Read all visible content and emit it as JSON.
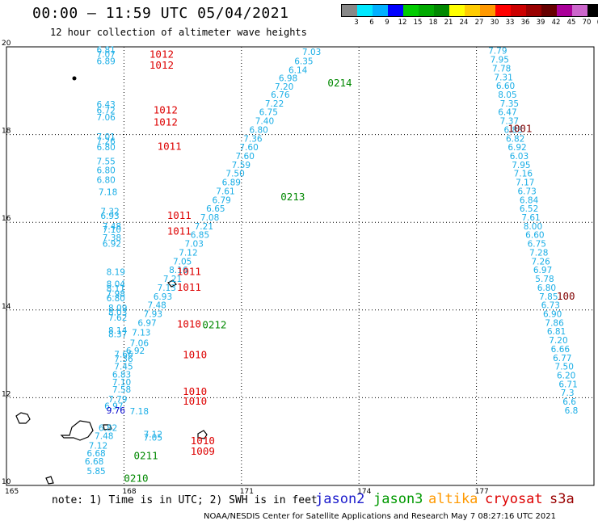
{
  "header": {
    "title": "00:00 – 11:59 UTC 05/04/2021",
    "subtitle": "12 hour collection of altimeter wave heights"
  },
  "colorscale": {
    "colors": [
      "#888888",
      "#00e8ff",
      "#00b0ff",
      "#0000ff",
      "#00cc00",
      "#00aa00",
      "#008800",
      "#ffff00",
      "#ffcc00",
      "#ff9900",
      "#ff0000",
      "#cc0000",
      "#990000",
      "#660000",
      "#aa0099",
      "#cc66cc",
      "#000000"
    ],
    "labels": [
      "3",
      "6",
      "9",
      "12",
      "15",
      "18",
      "21",
      "24",
      "27",
      "30",
      "33",
      "36",
      "39",
      "42",
      "45",
      "70",
      "(ft)"
    ]
  },
  "map": {
    "lon_range": [
      165,
      180
    ],
    "lat_range": [
      10,
      20
    ],
    "lon_ticks": [
      "165",
      "168",
      "171",
      "174",
      "177"
    ],
    "lat_ticks": [
      "20",
      "18",
      "16",
      "14",
      "12",
      "10"
    ],
    "swh_color": "#1aaee6",
    "island_markers": [
      "island-marker"
    ],
    "observations": [
      {
        "lon": 167.3,
        "lat": 19.86,
        "v": "6.81"
      },
      {
        "lon": 167.3,
        "lat": 19.76,
        "v": "7.07"
      },
      {
        "lon": 167.3,
        "lat": 19.6,
        "v": "6.89"
      },
      {
        "lon": 167.3,
        "lat": 18.62,
        "v": "6.43"
      },
      {
        "lon": 167.3,
        "lat": 18.48,
        "v": "6.72"
      },
      {
        "lon": 167.3,
        "lat": 18.32,
        "v": "7.06"
      },
      {
        "lon": 167.3,
        "lat": 17.88,
        "v": "7.01"
      },
      {
        "lon": 167.3,
        "lat": 17.78,
        "v": "7.26"
      },
      {
        "lon": 167.3,
        "lat": 17.64,
        "v": "6.80"
      },
      {
        "lon": 167.3,
        "lat": 17.32,
        "v": "7.55"
      },
      {
        "lon": 167.3,
        "lat": 17.12,
        "v": "6.80"
      },
      {
        "lon": 167.3,
        "lat": 16.9,
        "v": "6.80"
      },
      {
        "lon": 167.35,
        "lat": 16.62,
        "v": "7.18"
      },
      {
        "lon": 167.4,
        "lat": 16.18,
        "v": "7.32"
      },
      {
        "lon": 167.4,
        "lat": 16.08,
        "v": "6.93"
      },
      {
        "lon": 167.45,
        "lat": 15.84,
        "v": "7.48"
      },
      {
        "lon": 167.45,
        "lat": 15.76,
        "v": "7.10"
      },
      {
        "lon": 167.45,
        "lat": 15.58,
        "v": "7.38"
      },
      {
        "lon": 167.45,
        "lat": 15.44,
        "v": "6.92"
      },
      {
        "lon": 167.55,
        "lat": 14.8,
        "v": "8.19"
      },
      {
        "lon": 167.55,
        "lat": 14.52,
        "v": "8.04"
      },
      {
        "lon": 167.55,
        "lat": 14.42,
        "v": "8.11"
      },
      {
        "lon": 167.55,
        "lat": 14.3,
        "v": "7.98"
      },
      {
        "lon": 167.55,
        "lat": 14.2,
        "v": "6.80"
      },
      {
        "lon": 167.6,
        "lat": 13.98,
        "v": "8.09"
      },
      {
        "lon": 167.6,
        "lat": 13.88,
        "v": "8.03"
      },
      {
        "lon": 167.6,
        "lat": 13.76,
        "v": "7.62"
      },
      {
        "lon": 167.6,
        "lat": 13.46,
        "v": "8.14"
      },
      {
        "lon": 167.6,
        "lat": 13.38,
        "v": "8.37"
      },
      {
        "lon": 168.2,
        "lat": 13.42,
        "v": "7.13"
      },
      {
        "lon": 168.15,
        "lat": 13.18,
        "v": "7.06"
      },
      {
        "lon": 168.05,
        "lat": 13.0,
        "v": "6.92"
      },
      {
        "lon": 167.75,
        "lat": 12.92,
        "v": "7.66"
      },
      {
        "lon": 167.75,
        "lat": 12.82,
        "v": "7.36"
      },
      {
        "lon": 167.75,
        "lat": 12.64,
        "v": "7.45"
      },
      {
        "lon": 167.7,
        "lat": 12.46,
        "v": "6.83"
      },
      {
        "lon": 167.7,
        "lat": 12.28,
        "v": "7.10"
      },
      {
        "lon": 167.7,
        "lat": 12.12,
        "v": "7.58"
      },
      {
        "lon": 167.6,
        "lat": 11.9,
        "v": "7.79"
      },
      {
        "lon": 167.5,
        "lat": 11.74,
        "v": "6.97"
      },
      {
        "lon": 167.55,
        "lat": 11.64,
        "v": "9.76",
        "c": "#0000cc"
      },
      {
        "lon": 168.15,
        "lat": 11.62,
        "v": "7.18"
      },
      {
        "lon": 167.35,
        "lat": 11.24,
        "v": "6.82"
      },
      {
        "lon": 167.25,
        "lat": 11.06,
        "v": "7.48"
      },
      {
        "lon": 167.1,
        "lat": 10.84,
        "v": "7.12"
      },
      {
        "lon": 167.05,
        "lat": 10.66,
        "v": "6.68"
      },
      {
        "lon": 167.0,
        "lat": 10.48,
        "v": "6.68"
      },
      {
        "lon": 167.05,
        "lat": 10.26,
        "v": "5.85"
      },
      {
        "lon": 168.5,
        "lat": 11.1,
        "v": "7.12"
      },
      {
        "lon": 168.5,
        "lat": 11.02,
        "v": "7.05"
      },
      {
        "lon": 172.55,
        "lat": 19.82,
        "v": "7.03"
      },
      {
        "lon": 172.35,
        "lat": 19.6,
        "v": "6.35"
      },
      {
        "lon": 172.2,
        "lat": 19.4,
        "v": "6.14"
      },
      {
        "lon": 171.95,
        "lat": 19.22,
        "v": "6.98"
      },
      {
        "lon": 171.85,
        "lat": 19.02,
        "v": "7.20"
      },
      {
        "lon": 171.75,
        "lat": 18.84,
        "v": "6.76"
      },
      {
        "lon": 171.6,
        "lat": 18.64,
        "v": "7.22"
      },
      {
        "lon": 171.45,
        "lat": 18.44,
        "v": "6.75"
      },
      {
        "lon": 171.35,
        "lat": 18.24,
        "v": "7.40"
      },
      {
        "lon": 171.2,
        "lat": 18.04,
        "v": "6.80"
      },
      {
        "lon": 171.05,
        "lat": 17.84,
        "v": "7.36"
      },
      {
        "lon": 170.95,
        "lat": 17.64,
        "v": "7.60"
      },
      {
        "lon": 170.85,
        "lat": 17.44,
        "v": "7.60"
      },
      {
        "lon": 170.75,
        "lat": 17.24,
        "v": "7.59"
      },
      {
        "lon": 170.6,
        "lat": 17.04,
        "v": "7.50"
      },
      {
        "lon": 170.5,
        "lat": 16.84,
        "v": "6.89"
      },
      {
        "lon": 170.35,
        "lat": 16.64,
        "v": "7.61"
      },
      {
        "lon": 170.25,
        "lat": 16.44,
        "v": "6.79"
      },
      {
        "lon": 170.1,
        "lat": 16.24,
        "v": "6.65"
      },
      {
        "lon": 169.95,
        "lat": 16.04,
        "v": "7.08"
      },
      {
        "lon": 169.8,
        "lat": 15.84,
        "v": "7.21"
      },
      {
        "lon": 169.7,
        "lat": 15.64,
        "v": "6.85"
      },
      {
        "lon": 169.55,
        "lat": 15.44,
        "v": "7.03"
      },
      {
        "lon": 169.4,
        "lat": 15.24,
        "v": "7.12"
      },
      {
        "lon": 169.25,
        "lat": 15.04,
        "v": "7.05"
      },
      {
        "lon": 169.15,
        "lat": 14.84,
        "v": "8.16"
      },
      {
        "lon": 169.0,
        "lat": 14.64,
        "v": "7.21"
      },
      {
        "lon": 168.85,
        "lat": 14.44,
        "v": "7.13"
      },
      {
        "lon": 168.75,
        "lat": 14.24,
        "v": "6.93"
      },
      {
        "lon": 168.6,
        "lat": 14.04,
        "v": "7.48"
      },
      {
        "lon": 168.5,
        "lat": 13.84,
        "v": "7.93"
      },
      {
        "lon": 168.35,
        "lat": 13.64,
        "v": "6.97"
      },
      {
        "lon": 177.3,
        "lat": 19.84,
        "v": "7.79"
      },
      {
        "lon": 177.35,
        "lat": 19.64,
        "v": "7.95"
      },
      {
        "lon": 177.4,
        "lat": 19.44,
        "v": "7.78"
      },
      {
        "lon": 177.45,
        "lat": 19.24,
        "v": "7.31"
      },
      {
        "lon": 177.5,
        "lat": 19.04,
        "v": "6.60"
      },
      {
        "lon": 177.55,
        "lat": 18.84,
        "v": "8.05"
      },
      {
        "lon": 177.6,
        "lat": 18.64,
        "v": "7.35"
      },
      {
        "lon": 177.55,
        "lat": 18.44,
        "v": "6.47"
      },
      {
        "lon": 177.6,
        "lat": 18.24,
        "v": "7.37"
      },
      {
        "lon": 177.7,
        "lat": 18.04,
        "v": "6.83"
      },
      {
        "lon": 177.75,
        "lat": 17.84,
        "v": "6.82"
      },
      {
        "lon": 177.8,
        "lat": 17.64,
        "v": "6.92"
      },
      {
        "lon": 177.85,
        "lat": 17.44,
        "v": "6.03"
      },
      {
        "lon": 177.9,
        "lat": 17.24,
        "v": "7.95"
      },
      {
        "lon": 177.95,
        "lat": 17.04,
        "v": "7.16"
      },
      {
        "lon": 178.0,
        "lat": 16.84,
        "v": "7.17"
      },
      {
        "lon": 178.05,
        "lat": 16.64,
        "v": "6.73"
      },
      {
        "lon": 178.1,
        "lat": 16.44,
        "v": "6.84"
      },
      {
        "lon": 178.1,
        "lat": 16.24,
        "v": "6.52"
      },
      {
        "lon": 178.15,
        "lat": 16.04,
        "v": "7.61"
      },
      {
        "lon": 178.2,
        "lat": 15.84,
        "v": "8.00"
      },
      {
        "lon": 178.25,
        "lat": 15.64,
        "v": "6.60"
      },
      {
        "lon": 178.3,
        "lat": 15.44,
        "v": "6.75"
      },
      {
        "lon": 178.35,
        "lat": 15.24,
        "v": "7.28"
      },
      {
        "lon": 178.4,
        "lat": 15.04,
        "v": "7.26"
      },
      {
        "lon": 178.45,
        "lat": 14.84,
        "v": "6.97"
      },
      {
        "lon": 178.5,
        "lat": 14.64,
        "v": "5.78"
      },
      {
        "lon": 178.55,
        "lat": 14.44,
        "v": "6.80"
      },
      {
        "lon": 178.6,
        "lat": 14.24,
        "v": "7.85"
      },
      {
        "lon": 178.65,
        "lat": 14.04,
        "v": "6.73"
      },
      {
        "lon": 178.7,
        "lat": 13.84,
        "v": "6.90"
      },
      {
        "lon": 178.75,
        "lat": 13.64,
        "v": "7.86"
      },
      {
        "lon": 178.8,
        "lat": 13.44,
        "v": "6.81"
      },
      {
        "lon": 178.85,
        "lat": 13.24,
        "v": "7.20"
      },
      {
        "lon": 178.9,
        "lat": 13.04,
        "v": "6.66"
      },
      {
        "lon": 178.95,
        "lat": 12.84,
        "v": "6.77"
      },
      {
        "lon": 179.0,
        "lat": 12.64,
        "v": "7.50"
      },
      {
        "lon": 179.05,
        "lat": 12.44,
        "v": "6.20"
      },
      {
        "lon": 179.1,
        "lat": 12.24,
        "v": "6.71"
      },
      {
        "lon": 179.15,
        "lat": 12.04,
        "v": "7.3"
      },
      {
        "lon": 179.2,
        "lat": 11.84,
        "v": "6.6"
      },
      {
        "lon": 179.25,
        "lat": 11.64,
        "v": "6.8"
      }
    ],
    "pressure_labels": [
      {
        "lon": 168.65,
        "lat": 19.75,
        "v": "1012",
        "c": "#dd0000"
      },
      {
        "lon": 168.65,
        "lat": 19.5,
        "v": "1012",
        "c": "#dd0000"
      },
      {
        "lon": 168.75,
        "lat": 18.48,
        "v": "1012",
        "c": "#dd0000"
      },
      {
        "lon": 168.75,
        "lat": 18.2,
        "v": "1012",
        "c": "#dd0000"
      },
      {
        "lon": 168.85,
        "lat": 17.65,
        "v": "1011",
        "c": "#dd0000"
      },
      {
        "lon": 169.1,
        "lat": 16.08,
        "v": "1011",
        "c": "#dd0000"
      },
      {
        "lon": 169.1,
        "lat": 15.72,
        "v": "1011",
        "c": "#dd0000"
      },
      {
        "lon": 169.35,
        "lat": 14.8,
        "v": "1011",
        "c": "#dd0000"
      },
      {
        "lon": 169.35,
        "lat": 14.44,
        "v": "1011",
        "c": "#dd0000"
      },
      {
        "lon": 169.35,
        "lat": 13.6,
        "v": "1010",
        "c": "#dd0000"
      },
      {
        "lon": 169.5,
        "lat": 12.9,
        "v": "1010",
        "c": "#dd0000"
      },
      {
        "lon": 169.5,
        "lat": 12.06,
        "v": "1010",
        "c": "#dd0000"
      },
      {
        "lon": 169.5,
        "lat": 11.84,
        "v": "1010",
        "c": "#dd0000"
      },
      {
        "lon": 169.7,
        "lat": 10.94,
        "v": "1010",
        "c": "#dd0000"
      },
      {
        "lon": 169.7,
        "lat": 10.7,
        "v": "1009",
        "c": "#dd0000"
      },
      {
        "lon": 177.8,
        "lat": 18.06,
        "v": "1001",
        "c": "#800000"
      },
      {
        "lon": 179.05,
        "lat": 14.24,
        "v": "100",
        "c": "#800000"
      }
    ],
    "time_labels": [
      {
        "lon": 173.2,
        "lat": 19.1,
        "v": "0214",
        "c": "#008800"
      },
      {
        "lon": 172.0,
        "lat": 16.5,
        "v": "0213",
        "c": "#008800"
      },
      {
        "lon": 170.0,
        "lat": 13.58,
        "v": "0212",
        "c": "#008800"
      },
      {
        "lon": 168.25,
        "lat": 10.6,
        "v": "0211",
        "c": "#008800"
      },
      {
        "lon": 168.0,
        "lat": 10.08,
        "v": "0210",
        "c": "#008800"
      }
    ]
  },
  "note": "note: 1) Time is in UTC; 2) SWH is in feet",
  "satellites": [
    {
      "name": "jason2",
      "color": "#1a1acc"
    },
    {
      "name": "jason3",
      "color": "#009900"
    },
    {
      "name": "altika",
      "color": "#ff9900"
    },
    {
      "name": "cryosat",
      "color": "#dd0000"
    },
    {
      "name": "s3a",
      "color": "#990000"
    }
  ],
  "footer": "NOAA/NESDIS Center for Satellite Applications and Research   May  7 08:27:16 UTC 2021"
}
